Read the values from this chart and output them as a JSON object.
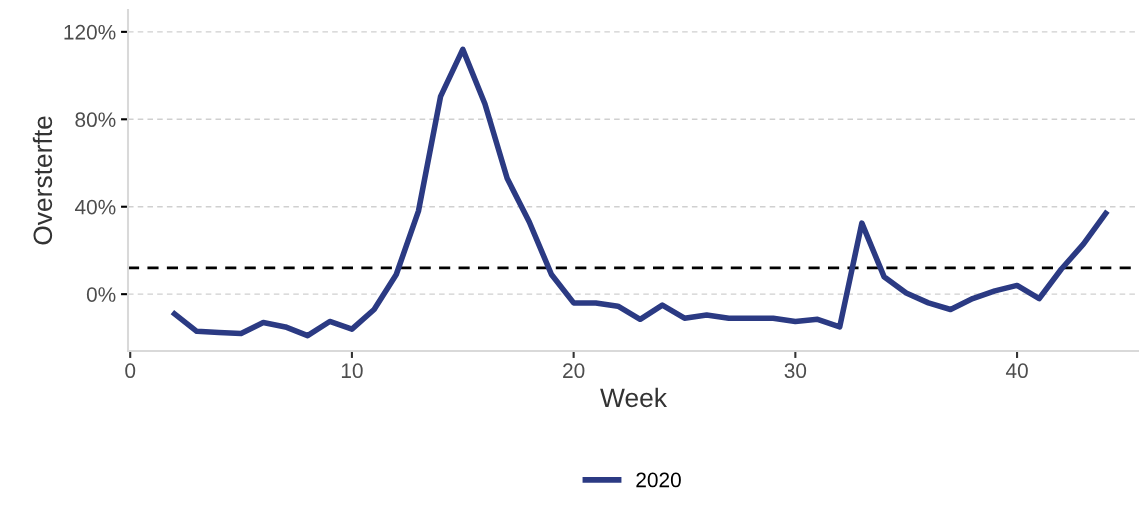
{
  "chart_data": {
    "type": "line",
    "xlabel": "Week",
    "ylabel": "Oversterfte",
    "x": [
      2,
      3,
      4,
      5,
      6,
      7,
      8,
      9,
      10,
      11,
      12,
      13,
      14,
      15,
      16,
      17,
      18,
      19,
      20,
      21,
      22,
      23,
      24,
      25,
      26,
      27,
      28,
      29,
      30,
      31,
      32,
      33,
      34,
      35,
      36,
      37,
      38,
      39,
      40,
      41,
      42,
      43,
      44
    ],
    "series": [
      {
        "name": "2020",
        "color": "#2b3a83",
        "values": [
          -9,
          -17,
          -17.5,
          -18,
          -13,
          -15,
          -19,
          -12.5,
          -16,
          -7,
          9,
          38,
          90.5,
          112,
          87,
          53,
          33,
          9,
          -4,
          -4,
          -5.5,
          -11.5,
          -5,
          -11,
          -9.5,
          -11,
          -11,
          -11,
          -12.5,
          -11.5,
          -15,
          32.5,
          8,
          0.5,
          -4,
          -7,
          -2,
          1.5,
          4,
          -2,
          11.5,
          23,
          37
        ]
      }
    ],
    "xlim": [
      -0.1,
      45.5
    ],
    "xticks": [
      0,
      10,
      20,
      30,
      40
    ],
    "ylim": [
      -26,
      130
    ],
    "yticks": [
      {
        "value": 0,
        "label": "0%"
      },
      {
        "value": 40,
        "label": "40%"
      },
      {
        "value": 80,
        "label": "80%"
      },
      {
        "value": 120,
        "label": "120%"
      }
    ],
    "ref_lines": [
      {
        "axis": "y",
        "value": 12,
        "color": "#000000",
        "line_style": "dashed"
      }
    ],
    "grid": "y",
    "legend": "bottom",
    "line_style": "solid",
    "marker": "none"
  }
}
